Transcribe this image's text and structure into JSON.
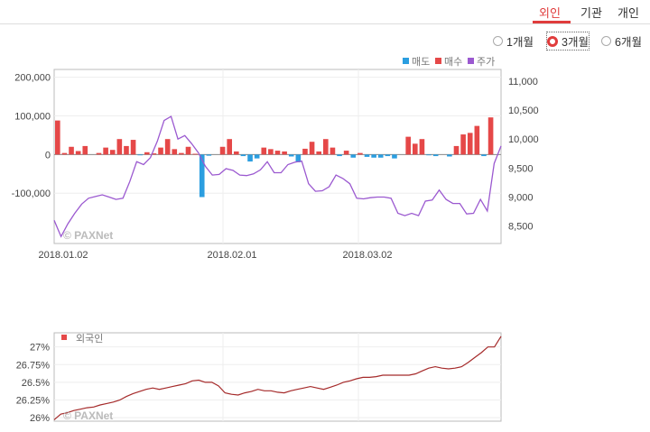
{
  "tabs": [
    {
      "label": "외인",
      "active": true
    },
    {
      "label": "기관",
      "active": false
    },
    {
      "label": "개인",
      "active": false
    }
  ],
  "periods": [
    {
      "label": "1개월",
      "selected": false
    },
    {
      "label": "3개월",
      "selected": true
    },
    {
      "label": "6개월",
      "selected": false
    }
  ],
  "colors": {
    "sell": "#2b9ee0",
    "buy": "#e54848",
    "price": "#9b59d0",
    "ratio": "#a52a2a",
    "accent": "#e03c3c"
  },
  "chart_data": [
    {
      "type": "bar",
      "legend": [
        {
          "name": "매도",
          "color": "#2b9ee0"
        },
        {
          "name": "매수",
          "color": "#e54848"
        },
        {
          "name": "주가",
          "color": "#9b59d0"
        }
      ],
      "legend_position": "top-right",
      "watermark": "© PAXNet",
      "x_tick_labels": [
        "2018.01.02",
        "2018.02.01",
        "2018.03.02"
      ],
      "y_left": {
        "range": [
          -230000,
          220000
        ],
        "ticks": [
          200000,
          100000,
          0,
          -100000
        ],
        "tick_labels": [
          "200,000",
          "100,000",
          "0",
          "-100,000"
        ]
      },
      "y_right": {
        "range": [
          8200,
          11200
        ],
        "ticks": [
          11000,
          10500,
          10000,
          9500,
          9000,
          8500
        ],
        "tick_labels": [
          "11,000",
          "10,500",
          "10,000",
          "9,500",
          "9,000",
          "8,500"
        ]
      },
      "grid": true,
      "series": [
        {
          "name": "매수",
          "values": [
            88000,
            4000,
            20000,
            9000,
            22000,
            0,
            4000,
            18000,
            12000,
            40000,
            22000,
            38000,
            -2000,
            6000,
            3000,
            18000,
            40000,
            14000,
            4000,
            20000,
            2000,
            -110000,
            -3000,
            0,
            20000,
            40000,
            8000,
            -4000,
            -18000,
            -10000,
            18000,
            14000,
            10000,
            8000,
            -5000,
            -20000,
            15000,
            33000,
            8000,
            40000,
            18000,
            -4000,
            10000,
            -8000,
            4000,
            -6000,
            -8000,
            -8000,
            -4000,
            -10000,
            0,
            46000,
            28000,
            40000,
            -2000,
            -4000,
            0,
            -5000,
            22000,
            52000,
            56000,
            74000,
            -4000,
            96000,
            0
          ]
        },
        {
          "name": "주가",
          "values": [
            8600,
            8320,
            8540,
            8720,
            8880,
            8980,
            9010,
            9040,
            9000,
            8960,
            8980,
            9270,
            9610,
            9560,
            9680,
            9960,
            10320,
            10390,
            10000,
            10060,
            9920,
            9760,
            9530,
            9380,
            9390,
            9490,
            9460,
            9380,
            9370,
            9400,
            9470,
            9610,
            9420,
            9420,
            9560,
            9600,
            9620,
            9230,
            9100,
            9110,
            9180,
            9380,
            9320,
            9230,
            8980,
            8970,
            8990,
            9000,
            9000,
            8980,
            8720,
            8680,
            8720,
            8680,
            8930,
            8950,
            9120,
            8960,
            8890,
            8890,
            8710,
            8720,
            8960,
            8760,
            9580,
            9880
          ]
        }
      ]
    },
    {
      "type": "line",
      "legend": [
        {
          "name": "외국인",
          "color": "#e54848"
        }
      ],
      "legend_position": "top-left",
      "watermark": "© PAXNet",
      "y": {
        "range": [
          25.95,
          27.2
        ],
        "ticks": [
          27,
          26.75,
          26.5,
          26.25,
          26
        ],
        "tick_labels": [
          "27%",
          "26.75%",
          "26.5%",
          "26.25%",
          "26%"
        ]
      },
      "grid": true,
      "series": [
        {
          "name": "외국인",
          "values": [
            25.97,
            26.05,
            26.07,
            26.1,
            26.12,
            26.14,
            26.15,
            26.18,
            26.2,
            26.22,
            26.25,
            26.3,
            26.34,
            26.37,
            26.4,
            26.42,
            26.4,
            26.42,
            26.44,
            26.46,
            26.48,
            26.52,
            26.53,
            26.5,
            26.5,
            26.45,
            26.35,
            26.33,
            26.32,
            26.35,
            26.37,
            26.4,
            26.38,
            26.38,
            26.36,
            26.35,
            26.38,
            26.4,
            26.42,
            26.44,
            26.42,
            26.4,
            26.43,
            26.46,
            26.5,
            26.52,
            26.55,
            26.57,
            26.57,
            26.58,
            26.6,
            26.6,
            26.6,
            26.6,
            26.6,
            26.62,
            26.66,
            26.7,
            26.72,
            26.7,
            26.69,
            26.7,
            26.72,
            26.78,
            26.85,
            26.92,
            27.0,
            27.0,
            27.15
          ]
        }
      ]
    }
  ]
}
